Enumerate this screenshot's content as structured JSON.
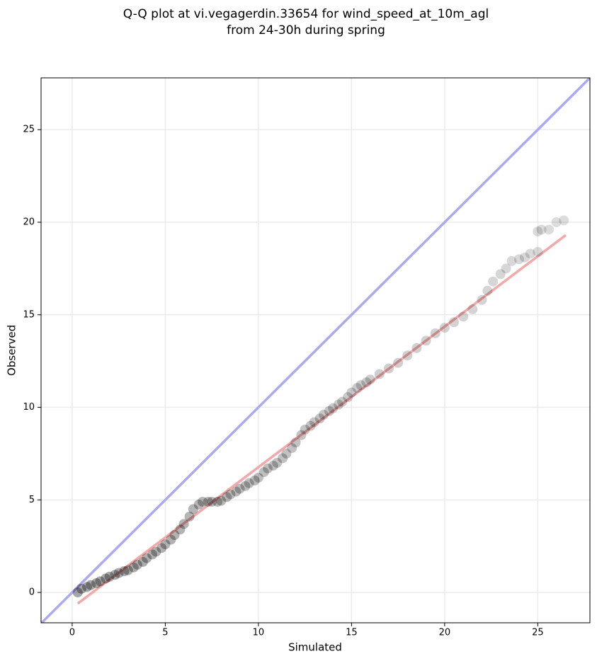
{
  "chart_data": {
    "type": "scatter",
    "title": [
      "Q-Q plot at vi.vegagerdin.33654 for wind_speed_at_10m_agl",
      "from 24-30h during spring"
    ],
    "x_label": "Simulated",
    "y_label": "Observed",
    "xlim": [
      -1.67,
      27.8
    ],
    "ylim": [
      -1.64,
      27.8
    ],
    "xticks": [
      0,
      5,
      10,
      15,
      20,
      25
    ],
    "yticks": [
      0,
      5,
      10,
      15,
      20,
      25
    ],
    "grid": true,
    "series": [
      {
        "color": "#000000",
        "x": [
          0.3,
          0.5,
          0.8,
          1,
          1.3,
          1.5,
          1.8,
          2,
          2.3,
          2.5,
          2.8,
          3,
          3.3,
          3.5,
          3.8,
          4,
          4.3,
          4.5,
          4.8,
          5,
          5.3,
          5.5,
          5.8,
          6,
          6.3,
          6.5,
          6.8,
          7,
          7.3,
          7.5,
          7.8,
          8,
          8.3,
          8.5,
          8.8,
          9,
          9.3,
          9.5,
          9.8,
          10,
          10.3,
          10.5,
          10.8,
          11,
          11.3,
          11.5,
          11.8,
          12,
          12.3,
          12.5,
          12.8,
          13,
          13.3,
          13.5,
          13.8,
          14,
          14.3,
          14.5,
          14.8,
          15,
          15.3,
          15.5,
          15.8,
          16,
          16.5,
          17,
          17.5,
          18,
          18.5,
          19,
          19.5,
          20,
          20.5,
          21,
          21.5,
          22,
          22.3,
          22.6,
          23,
          23.3,
          23.6,
          24,
          24.3,
          24.6,
          25,
          25,
          25.2,
          25.6,
          26,
          26.4
        ],
        "values": [
          0,
          0.2,
          0.3,
          0.4,
          0.5,
          0.6,
          0.75,
          0.85,
          0.95,
          1.05,
          1.15,
          1.2,
          1.35,
          1.5,
          1.65,
          1.85,
          2.05,
          2.2,
          2.4,
          2.6,
          2.85,
          3.1,
          3.4,
          3.7,
          4.1,
          4.5,
          4.75,
          4.9,
          4.9,
          4.9,
          4.9,
          4.95,
          5.15,
          5.3,
          5.45,
          5.6,
          5.75,
          5.9,
          6.05,
          6.2,
          6.5,
          6.7,
          6.85,
          7.0,
          7.25,
          7.5,
          7.8,
          8.1,
          8.5,
          8.8,
          9.0,
          9.2,
          9.4,
          9.6,
          9.8,
          9.95,
          10.15,
          10.3,
          10.55,
          10.8,
          11.05,
          11.2,
          11.35,
          11.5,
          11.8,
          12.1,
          12.4,
          12.8,
          13.2,
          13.6,
          14.0,
          14.3,
          14.6,
          14.9,
          15.3,
          15.8,
          16.3,
          16.8,
          17.2,
          17.5,
          17.9,
          18.0,
          18.1,
          18.3,
          18.4,
          19.5,
          19.6,
          19.6,
          20.0,
          20.1
        ]
      }
    ],
    "lines": [
      {
        "color": "#aaaaf0",
        "x": [
          -1.67,
          27.8
        ],
        "values": [
          -1.67,
          27.8
        ]
      },
      {
        "color": "#f4a8a8",
        "x": [
          0.3,
          26.5
        ],
        "values": [
          -0.6,
          19.3
        ]
      }
    ]
  }
}
